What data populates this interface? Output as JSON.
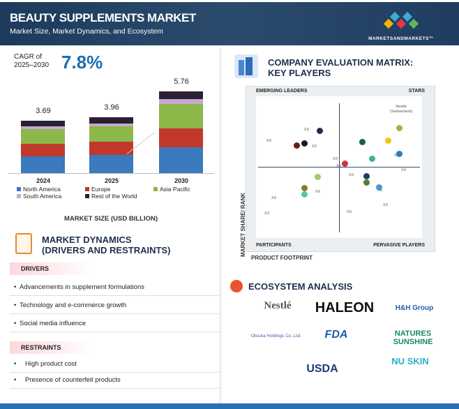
{
  "header": {
    "title": "BEAUTY SUPPLEMENTS MARKET",
    "subtitle": "Market Size, Market Dynamics, and Ecosystem",
    "brand": "MARKETSANDMARKETS™"
  },
  "cagr": {
    "label_line1": "CAGR of",
    "label_line2": "2025–2030",
    "value": "7.8%"
  },
  "chart_data": {
    "type": "bar",
    "stacked": true,
    "categories": [
      "2024",
      "2025",
      "2030"
    ],
    "totals": [
      "3.69",
      "3.96",
      "5.76"
    ],
    "series": [
      {
        "name": "North America",
        "color": "#3a7abd",
        "values": [
          1.18,
          1.29,
          1.84
        ]
      },
      {
        "name": "Europe",
        "color": "#c0392b",
        "values": [
          0.89,
          0.94,
          1.33
        ]
      },
      {
        "name": "Asia Pacific",
        "color": "#8cb84a",
        "values": [
          1.02,
          1.09,
          1.69
        ]
      },
      {
        "name": "South America",
        "color": "#c9a7cf",
        "values": [
          0.2,
          0.2,
          0.35
        ]
      },
      {
        "name": "Rest of the World",
        "color": "#2a1f33",
        "values": [
          0.4,
          0.44,
          0.55
        ]
      }
    ],
    "xlabel": "MARKET SIZE (USD BILLION)"
  },
  "dynamics": {
    "title_line1": "MARKET DYNAMICS",
    "title_line2": "(DRIVERS AND RESTRAINTS)",
    "drivers_label": "DRIVERS",
    "drivers": [
      "Advancements in supplement formulations",
      "Technology and e-commerce growth",
      "Social media influence"
    ],
    "restraints_label": "RESTRAINTS",
    "restraints": [
      "High product cost",
      "Presence of counterfeit products"
    ]
  },
  "matrix": {
    "title_line1": "COMPANY EVALUATION MATRIX:",
    "title_line2": "KEY PLAYERS",
    "q_tl": "EMERGING LEADERS",
    "q_tr": "STARS",
    "q_bl": "PARTICIPANTS",
    "q_br": "PERVASIVE PLAYERS",
    "y_axis": "MARKET SHARE/ RANK",
    "x_axis": "PRODUCT FOOTPRINT",
    "highlight_line1": "Nestlé",
    "highlight_line2": "(Switzerland)",
    "placeholder": "XX"
  },
  "ecosystem": {
    "title": "ECOSYSTEM ANALYSIS",
    "logos": [
      "Nestlé",
      "HALEON",
      "H&H Group",
      "Otsuka Holdings Co.,Ltd.",
      "FDA",
      "NATURES SUNSHINE",
      "USDA",
      "NU SKIN"
    ]
  }
}
